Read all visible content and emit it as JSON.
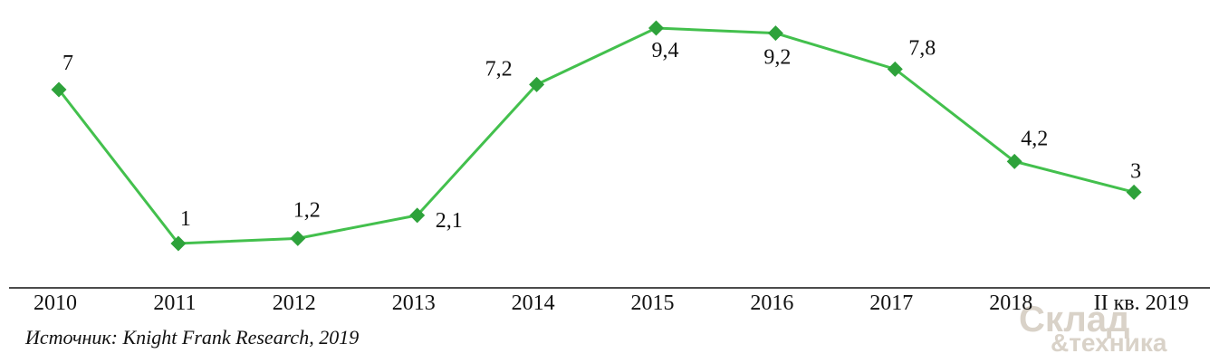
{
  "chart_data": {
    "type": "line",
    "categories": [
      "2010",
      "2011",
      "2012",
      "2013",
      "2014",
      "2015",
      "2016",
      "2017",
      "2018",
      "II кв. 2019"
    ],
    "series": [
      {
        "color": "#43c04d",
        "marker_color": "#2ea23b",
        "values": [
          7,
          1,
          1.2,
          2.1,
          7.2,
          9.4,
          9.2,
          7.8,
          4.2,
          3
        ],
        "value_labels": [
          "7",
          "1",
          "1,2",
          "2,1",
          "7,2",
          "9,4",
          "9,2",
          "7,8",
          "4,2",
          "3"
        ]
      }
    ],
    "source": "Источник: Knight Frank Research, 2019",
    "watermark": [
      "Склад",
      "&техника"
    ]
  }
}
